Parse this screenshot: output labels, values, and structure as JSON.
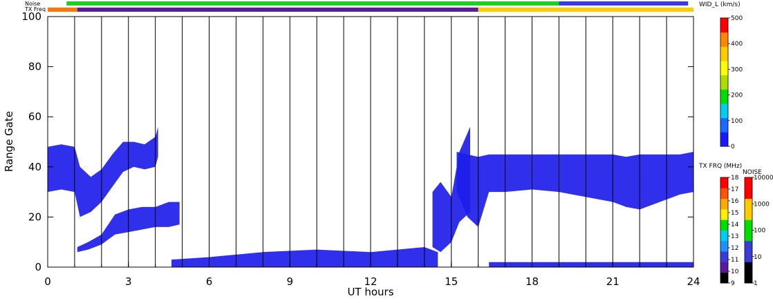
{
  "chart_data": {
    "type": "scatter",
    "title": "",
    "xlabel": "UT hours",
    "ylabel": "Range Gate",
    "xlim": [
      0,
      24
    ],
    "ylim": [
      0,
      100
    ],
    "x_ticks": [
      "0",
      "3",
      "6",
      "9",
      "12",
      "15",
      "18",
      "21",
      "24"
    ],
    "y_ticks": [
      "0",
      "20",
      "40",
      "60",
      "80",
      "100"
    ],
    "vertical_lines_x": [
      1,
      2,
      3,
      4,
      5,
      6,
      7,
      8,
      9,
      10,
      11,
      12,
      13,
      14,
      15,
      16,
      17,
      18,
      19,
      20,
      21,
      22,
      23
    ],
    "top_bars": [
      {
        "label": "Noise",
        "segments": [
          {
            "from": 0.7,
            "to": 15.9,
            "color": "#22cc22"
          },
          {
            "from": 15.9,
            "to": 19.0,
            "color": "#22cc22"
          },
          {
            "from": 19.0,
            "to": 23.8,
            "color": "#3b3bd6"
          }
        ]
      },
      {
        "label": "TX Freq",
        "segments": [
          {
            "from": 0,
            "to": 1.1,
            "color": "#ff7700"
          },
          {
            "from": 1.1,
            "to": 16.0,
            "color": "#5a1aa0"
          },
          {
            "from": 16.0,
            "to": 24.0,
            "color": "#ffcc00"
          }
        ]
      }
    ],
    "series": [
      {
        "kind": "band",
        "color": "#1e1eea",
        "x": [
          0.0,
          0.5,
          1.0,
          1.2,
          1.6,
          2.0,
          2.4,
          2.8,
          3.2,
          3.6,
          4.0,
          4.1
        ],
        "lower": [
          30,
          31,
          30,
          20,
          22,
          26,
          32,
          38,
          40,
          39,
          40,
          44
        ],
        "upper": [
          48,
          49,
          48,
          40,
          36,
          39,
          45,
          50,
          50,
          49,
          52,
          56
        ]
      },
      {
        "kind": "band",
        "color": "#1e1eea",
        "x": [
          1.1,
          1.5,
          2.0,
          2.5,
          3.0,
          3.5,
          4.0,
          4.5,
          4.9
        ],
        "lower": [
          6,
          7,
          9,
          13,
          14,
          15,
          16,
          16,
          17
        ],
        "upper": [
          8,
          10,
          13,
          21,
          23,
          24,
          24,
          26,
          26
        ]
      },
      {
        "kind": "band",
        "color": "#1e1eea",
        "x": [
          4.6,
          6,
          8,
          10,
          12,
          14,
          14.5
        ],
        "lower": [
          0,
          0,
          0,
          0,
          0,
          0,
          0
        ],
        "upper": [
          3,
          4,
          6,
          7,
          6,
          8,
          6
        ]
      },
      {
        "kind": "band",
        "color": "#1e1eea",
        "x": [
          14.3,
          14.6,
          15.0,
          15.3,
          15.7
        ],
        "lower": [
          8,
          6,
          10,
          18,
          22
        ],
        "upper": [
          30,
          34,
          28,
          46,
          56
        ]
      },
      {
        "kind": "band",
        "color": "#1e1eea",
        "x": [
          15.2,
          15.6,
          16.0,
          16.4,
          17.0,
          18.0,
          19.0,
          20.0,
          21.0,
          21.5,
          22.0,
          22.5,
          23.0,
          23.5,
          24.0
        ],
        "lower": [
          30,
          20,
          16,
          30,
          30,
          31,
          30,
          28,
          26,
          24,
          23,
          25,
          27,
          29,
          30
        ],
        "upper": [
          46,
          45,
          44,
          45,
          45,
          45,
          45,
          45,
          45,
          44,
          45,
          45,
          45,
          45,
          46
        ]
      },
      {
        "kind": "band",
        "color": "#1e1eea",
        "x": [
          16.4,
          18,
          20,
          22,
          24
        ],
        "lower": [
          0,
          0,
          0,
          0,
          0
        ],
        "upper": [
          2,
          2,
          2,
          2,
          2
        ]
      }
    ],
    "colorbars": [
      {
        "title": "WID_L (km/s)",
        "ticks": [
          "0",
          "100",
          "200",
          "300",
          "400",
          "500"
        ],
        "colors": [
          "#1a1aff",
          "#1a6aff",
          "#00ccee",
          "#00dd00",
          "#aadd00",
          "#ffff00",
          "#ffcc00",
          "#ff8800",
          "#ff0000"
        ]
      },
      {
        "title": "TX FRQ (MHz)",
        "ticks": [
          "9",
          "10",
          "11",
          "12",
          "13",
          "14",
          "15",
          "16",
          "17",
          "18"
        ],
        "colors": [
          "#000000",
          "#5a1aa0",
          "#3b3bd6",
          "#2090ff",
          "#00ccee",
          "#00dd00",
          "#ffee00",
          "#ffaa00",
          "#ff5500",
          "#ff0000"
        ]
      },
      {
        "title": "NOISE",
        "ticks": [
          "1",
          "10",
          "100",
          "1000",
          "10000"
        ],
        "colors": [
          "#000000",
          "#3b3bd6",
          "#00dd00",
          "#ffcc00",
          "#ff0000"
        ]
      }
    ]
  }
}
